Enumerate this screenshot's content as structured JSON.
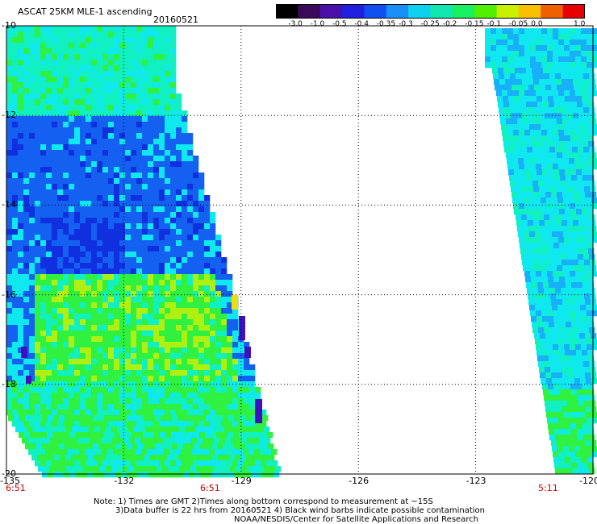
{
  "header": {
    "title": "ASCAT 25KM MLE-1 ascending",
    "date": "20160521"
  },
  "colorbar": {
    "labels": [
      "-3.0",
      "-1.0",
      "-0.5",
      "-0.4",
      "-0.35",
      "-0.3",
      "-0.25",
      "-0.2",
      "-0.15",
      "-0.1",
      "-0.05",
      "0.0",
      "1.0"
    ],
    "colors": [
      "#000000",
      "#3a0a5a",
      "#4a10a8",
      "#2020e0",
      "#1050f0",
      "#1890f8",
      "#10d0f0",
      "#10e8b0",
      "#18f060",
      "#50f000",
      "#c8f000",
      "#f8c000",
      "#f06000",
      "#e80000"
    ]
  },
  "map": {
    "x_ticks": [
      "-135",
      "-132",
      "-129",
      "-126",
      "-123",
      "-120"
    ],
    "y_ticks": [
      "-10",
      "-12",
      "-14",
      "-16",
      "-18",
      "-20"
    ],
    "time_labels": [
      "6:51",
      "6:51",
      "5:11"
    ],
    "swath_colors": {
      "blue_dark": "#1030e0",
      "blue": "#1460f0",
      "cyan": "#10e8f0",
      "aqua": "#10f0c0",
      "green": "#30f040",
      "yellow_green": "#b0f010",
      "purple": "#4010c0"
    }
  },
  "notes": {
    "line1": "Note: 1) Times are GMT 2)Times along bottom correspond to measurement at ~15S",
    "line2": "3)Data buffer is 22 hrs from 20160521 4) Black wind barbs indicate possible contamination",
    "line3": "NOAA/NESDIS/Center for Satellite Applications and Research"
  }
}
